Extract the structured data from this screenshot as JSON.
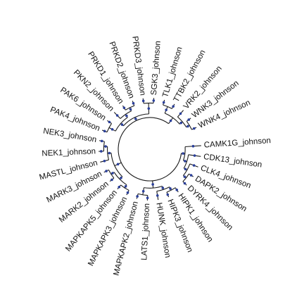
{
  "diagram": {
    "type": "circular-dendrogram",
    "colors": {
      "branch": "#1a1a1a",
      "node": "#2a3f9a",
      "label": "#111111",
      "background": "#ffffff"
    },
    "leaves": [
      {
        "id": "camk1g",
        "label": "CAMK1G_johnson"
      },
      {
        "id": "cdk13",
        "label": "CDK13_johnson"
      },
      {
        "id": "clk4",
        "label": "CLK4_johnson"
      },
      {
        "id": "dapk2",
        "label": "DAPK2_johnson"
      },
      {
        "id": "dyrk4",
        "label": "DYRK4_johnson"
      },
      {
        "id": "hipk1",
        "label": "HIPK1_johnson"
      },
      {
        "id": "hipk3",
        "label": "HIPK3_johnson"
      },
      {
        "id": "hunk",
        "label": "HUNK_johnson"
      },
      {
        "id": "lats1",
        "label": "LATS1_johnson"
      },
      {
        "id": "mapkapk2",
        "label": "MAPKAPK2_johnson"
      },
      {
        "id": "mapkapk3",
        "label": "MAPKAPK3_johnson"
      },
      {
        "id": "mapkapk5",
        "label": "MAPKAPK5_johnson"
      },
      {
        "id": "mark2",
        "label": "MARK2_johnson"
      },
      {
        "id": "mark3",
        "label": "MARK3_johnson"
      },
      {
        "id": "mastl",
        "label": "MASTL_johnson"
      },
      {
        "id": "nek1",
        "label": "NEK1_johnson"
      },
      {
        "id": "nek3",
        "label": "NEK3_johnson"
      },
      {
        "id": "pak4",
        "label": "PAK4_johnson"
      },
      {
        "id": "pak6",
        "label": "PAK6_johnson"
      },
      {
        "id": "pkn2",
        "label": "PKN2_johnson"
      },
      {
        "id": "prkd1",
        "label": "PRKD1_johnson"
      },
      {
        "id": "prkd2",
        "label": "PRKD2_johnson"
      },
      {
        "id": "prkd3",
        "label": "PRKD3_johnson"
      },
      {
        "id": "sgk3",
        "label": "SGK3_johnson"
      },
      {
        "id": "tlk1",
        "label": "TLK1_johnson"
      },
      {
        "id": "ttbk2",
        "label": "TTBK2_johnson"
      },
      {
        "id": "vrk2",
        "label": "VRK2_johnson"
      },
      {
        "id": "wnk3",
        "label": "WNK3_johnson"
      },
      {
        "id": "wnk4",
        "label": "WNK4_johnson"
      }
    ],
    "tree": {
      "children": [
        {
          "children": [
            {
              "leaf": "camk1g"
            },
            {
              "children": [
                {
                  "leaf": "cdk13"
                },
                {
                  "children": [
                    {
                      "leaf": "clk4"
                    },
                    {
                      "children": [
                        {
                          "leaf": "dapk2"
                        },
                        {
                          "leaf": "dyrk4"
                        }
                      ]
                    }
                  ]
                }
              ]
            }
          ]
        },
        {
          "children": [
            {
              "children": [
                {
                  "children": [
                    {
                      "leaf": "hipk1"
                    },
                    {
                      "leaf": "hipk3"
                    }
                  ]
                },
                {
                  "leaf": "hunk"
                }
              ]
            },
            {
              "children": [
                {
                  "leaf": "lats1"
                },
                {
                  "leaf": "mapkapk2"
                }
              ]
            }
          ]
        },
        {
          "children": [
            {
              "children": [
                {
                  "children": [
                    {
                      "leaf": "mapkapk3"
                    },
                    {
                      "leaf": "mapkapk5"
                    }
                  ]
                },
                {
                  "children": [
                    {
                      "leaf": "mark2"
                    },
                    {
                      "leaf": "mark3"
                    }
                  ]
                }
              ]
            },
            {
              "children": [
                {
                  "leaf": "mastl"
                },
                {
                  "children": [
                    {
                      "leaf": "nek1"
                    },
                    {
                      "leaf": "nek3"
                    }
                  ]
                }
              ]
            }
          ]
        },
        {
          "children": [
            {
              "children": [
                {
                  "children": [
                    {
                      "leaf": "pak4"
                    },
                    {
                      "leaf": "pak6"
                    }
                  ]
                },
                {
                  "children": [
                    {
                      "leaf": "pkn2"
                    },
                    {
                      "children": [
                        {
                          "leaf": "prkd1"
                        },
                        {
                          "leaf": "prkd2"
                        }
                      ]
                    }
                  ]
                }
              ]
            },
            {
              "children": [
                {
                  "leaf": "prkd3"
                },
                {
                  "leaf": "sgk3"
                }
              ]
            }
          ]
        },
        {
          "children": [
            {
              "children": [
                {
                  "leaf": "tlk1"
                },
                {
                  "leaf": "ttbk2"
                }
              ]
            },
            {
              "children": [
                {
                  "leaf": "vrk2"
                },
                {
                  "children": [
                    {
                      "leaf": "wnk3"
                    },
                    {
                      "leaf": "wnk4"
                    }
                  ]
                }
              ]
            }
          ]
        }
      ]
    }
  }
}
